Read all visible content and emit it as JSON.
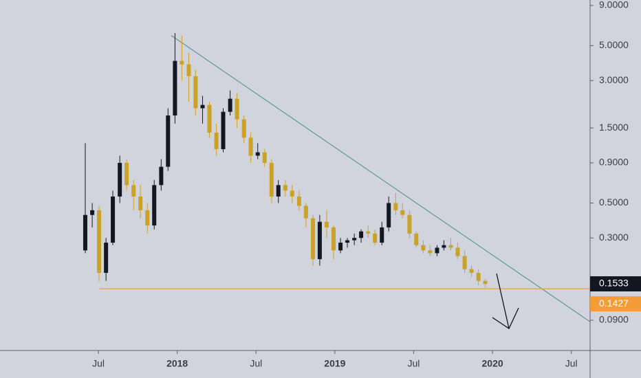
{
  "chart_data": {
    "type": "candlestick",
    "log_scale": true,
    "xlim": [
      -1.49,
      43.43
    ],
    "ylim": [
      0.0578,
      9.75
    ],
    "xticks": [
      {
        "value": 6,
        "label": "Jul"
      },
      {
        "value": 12,
        "label": "2018"
      },
      {
        "value": 18,
        "label": "Jul"
      },
      {
        "value": 24,
        "label": "2019"
      },
      {
        "value": 30,
        "label": "Jul"
      },
      {
        "value": 36,
        "label": "2020"
      },
      {
        "value": 42,
        "label": "Jul"
      }
    ],
    "yticks": [
      {
        "value": 9,
        "label": "9.0000"
      },
      {
        "value": 5,
        "label": "5.0000"
      },
      {
        "value": 3,
        "label": "3.0000"
      },
      {
        "value": 1.5,
        "label": "1.5000"
      },
      {
        "value": 0.9,
        "label": "0.9000"
      },
      {
        "value": 0.5,
        "label": "0.5000"
      },
      {
        "value": 0.3,
        "label": "0.3000"
      },
      {
        "value": 0.09,
        "label": "0.0900"
      }
    ],
    "up_color": "#131722",
    "down_color": "#c9a227",
    "x": [
      5,
      5.53,
      6.05,
      6.58,
      7.1,
      7.63,
      8.15,
      8.68,
      9.2,
      9.73,
      10.25,
      10.78,
      11.3,
      11.83,
      12.35,
      12.88,
      13.4,
      13.93,
      14.45,
      14.98,
      15.5,
      16.03,
      16.55,
      17.08,
      17.6,
      18.13,
      18.65,
      19.18,
      19.7,
      20.23,
      20.75,
      21.28,
      21.8,
      22.33,
      22.85,
      23.38,
      23.9,
      24.43,
      24.95,
      25.48,
      26,
      26.53,
      27.05,
      27.58,
      28.1,
      28.63,
      29.15,
      29.68,
      30.2,
      30.73,
      31.25,
      31.78,
      32.3,
      32.83,
      33.35,
      33.88,
      34.4,
      34.93,
      35.45
    ],
    "open": [
      0.25,
      0.42,
      0.45,
      0.18,
      0.28,
      0.55,
      0.9,
      0.65,
      0.55,
      0.45,
      0.36,
      0.65,
      0.85,
      1.8,
      4.0,
      3.8,
      3.2,
      2.0,
      2.1,
      1.4,
      1.1,
      1.9,
      2.3,
      1.7,
      1.3,
      1.0,
      1.05,
      0.9,
      0.55,
      0.65,
      0.6,
      0.55,
      0.48,
      0.4,
      0.22,
      0.38,
      0.35,
      0.25,
      0.28,
      0.29,
      0.3,
      0.33,
      0.32,
      0.28,
      0.35,
      0.5,
      0.45,
      0.42,
      0.32,
      0.27,
      0.25,
      0.24,
      0.26,
      0.27,
      0.26,
      0.23,
      0.19,
      0.18,
      0.16
    ],
    "high": [
      1.2,
      0.5,
      0.48,
      0.3,
      0.6,
      1.0,
      0.95,
      0.7,
      0.65,
      0.5,
      0.7,
      0.95,
      2.0,
      6.0,
      5.8,
      4.5,
      3.5,
      2.4,
      2.2,
      1.6,
      2.0,
      2.6,
      2.5,
      1.8,
      1.4,
      1.2,
      1.1,
      0.95,
      0.7,
      0.7,
      0.65,
      0.6,
      0.5,
      0.42,
      0.42,
      0.45,
      0.36,
      0.3,
      0.3,
      0.32,
      0.34,
      0.36,
      0.34,
      0.38,
      0.55,
      0.58,
      0.5,
      0.45,
      0.33,
      0.29,
      0.27,
      0.27,
      0.29,
      0.3,
      0.28,
      0.25,
      0.2,
      0.19,
      0.165
    ],
    "low": [
      0.24,
      0.35,
      0.16,
      0.16,
      0.27,
      0.5,
      0.6,
      0.45,
      0.4,
      0.32,
      0.34,
      0.6,
      0.8,
      1.6,
      3.0,
      2.2,
      1.8,
      1.6,
      1.3,
      1.0,
      1.05,
      1.8,
      1.5,
      1.2,
      0.9,
      0.95,
      0.85,
      0.5,
      0.5,
      0.55,
      0.5,
      0.45,
      0.35,
      0.2,
      0.2,
      0.3,
      0.22,
      0.24,
      0.26,
      0.27,
      0.28,
      0.3,
      0.27,
      0.27,
      0.33,
      0.42,
      0.4,
      0.3,
      0.26,
      0.24,
      0.23,
      0.23,
      0.25,
      0.25,
      0.22,
      0.18,
      0.17,
      0.15,
      0.145
    ],
    "close": [
      0.42,
      0.45,
      0.18,
      0.28,
      0.55,
      0.9,
      0.65,
      0.55,
      0.45,
      0.36,
      0.65,
      0.85,
      1.8,
      4.0,
      3.8,
      3.2,
      2.0,
      2.1,
      1.4,
      1.1,
      1.9,
      2.3,
      1.7,
      1.3,
      1.0,
      1.05,
      0.9,
      0.55,
      0.65,
      0.6,
      0.55,
      0.48,
      0.4,
      0.22,
      0.38,
      0.35,
      0.25,
      0.28,
      0.29,
      0.3,
      0.33,
      0.32,
      0.28,
      0.35,
      0.5,
      0.45,
      0.42,
      0.32,
      0.27,
      0.25,
      0.24,
      0.26,
      0.27,
      0.26,
      0.23,
      0.19,
      0.18,
      0.16,
      0.153
    ],
    "last_price": 0.1533,
    "support_level": 0.1427,
    "support_start_x": 6.1,
    "support_color": "#f29d38",
    "trendline": {
      "x": [
        11.55,
        43.43
      ],
      "y": [
        5.8,
        0.088
      ],
      "color": "#4d8c8c"
    }
  }
}
